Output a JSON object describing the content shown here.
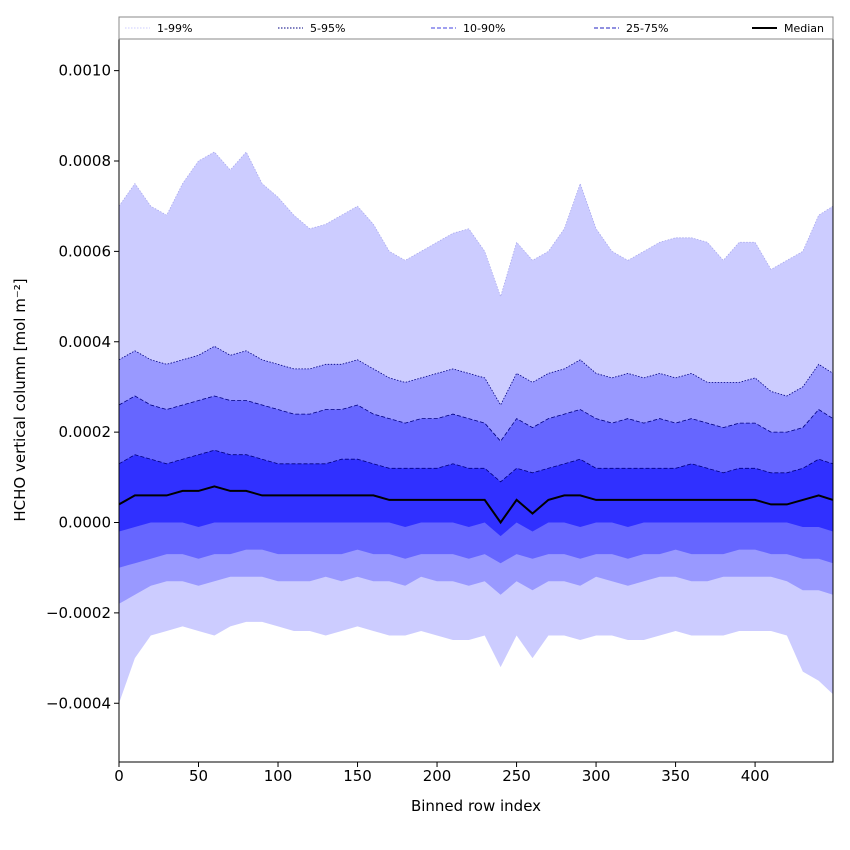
{
  "chart_data": {
    "type": "area",
    "xlabel": "Binned row index",
    "ylabel": "HCHO vertical column [mol m⁻²]",
    "xlim": [
      0,
      449
    ],
    "ylim": [
      -0.00053,
      0.00107
    ],
    "x_ticks": [
      {
        "value": 0,
        "label": "0"
      },
      {
        "value": 50,
        "label": "50"
      },
      {
        "value": 100,
        "label": "100"
      },
      {
        "value": 150,
        "label": "150"
      },
      {
        "value": 200,
        "label": "200"
      },
      {
        "value": 250,
        "label": "250"
      },
      {
        "value": 300,
        "label": "300"
      },
      {
        "value": 350,
        "label": "350"
      },
      {
        "value": 400,
        "label": "400"
      }
    ],
    "y_ticks": [
      {
        "value": 0.001,
        "label": "0.0010"
      },
      {
        "value": 0.0008,
        "label": "0.0008"
      },
      {
        "value": 0.0006,
        "label": "0.0006"
      },
      {
        "value": 0.0004,
        "label": "0.0004"
      },
      {
        "value": 0.0002,
        "label": "0.0002"
      },
      {
        "value": 0.0,
        "label": "0.0000"
      },
      {
        "value": -0.0002,
        "label": "−0.0002"
      },
      {
        "value": -0.0004,
        "label": "−0.0004"
      }
    ],
    "legend": {
      "placement": "top, above plot, horizontal",
      "entries": [
        {
          "label": "1-99%",
          "color": "#ccccff",
          "style": "dotted"
        },
        {
          "label": "5-95%",
          "color": "#000080",
          "style": "dotted"
        },
        {
          "label": "10-90%",
          "color": "#4040e0",
          "style": "dashed"
        },
        {
          "label": "25-75%",
          "color": "#2020c0",
          "style": "dashed"
        },
        {
          "label": "Median",
          "color": "#000000",
          "style": "solid"
        }
      ]
    },
    "band_colors": {
      "p1_99": "#ccccff",
      "p5_95": "#9999ff",
      "p10_90": "#6666ff",
      "p25_75": "#3030ff"
    },
    "median_color": "#000000",
    "x": [
      0,
      10,
      20,
      30,
      40,
      50,
      60,
      70,
      80,
      90,
      100,
      110,
      120,
      130,
      140,
      150,
      160,
      170,
      180,
      190,
      200,
      210,
      220,
      230,
      240,
      250,
      260,
      270,
      280,
      290,
      300,
      310,
      320,
      330,
      340,
      350,
      360,
      370,
      380,
      390,
      400,
      410,
      420,
      430,
      440,
      449
    ],
    "series": [
      {
        "name": "1-99%",
        "lower": [
          -0.0004,
          -0.0003,
          -0.00025,
          -0.00024,
          -0.00023,
          -0.00024,
          -0.00025,
          -0.00023,
          -0.00022,
          -0.00022,
          -0.00023,
          -0.00024,
          -0.00024,
          -0.00025,
          -0.00024,
          -0.00023,
          -0.00024,
          -0.00025,
          -0.00025,
          -0.00024,
          -0.00025,
          -0.00026,
          -0.00026,
          -0.00025,
          -0.00032,
          -0.00025,
          -0.0003,
          -0.00025,
          -0.00025,
          -0.00026,
          -0.00025,
          -0.00025,
          -0.00026,
          -0.00026,
          -0.00025,
          -0.00024,
          -0.00025,
          -0.00025,
          -0.00025,
          -0.00024,
          -0.00024,
          -0.00024,
          -0.00025,
          -0.00033,
          -0.00035,
          -0.00038
        ],
        "upper": [
          0.0007,
          0.00075,
          0.0007,
          0.00068,
          0.00075,
          0.0008,
          0.00082,
          0.00078,
          0.00082,
          0.00075,
          0.00072,
          0.00068,
          0.00065,
          0.00066,
          0.00068,
          0.0007,
          0.00066,
          0.0006,
          0.00058,
          0.0006,
          0.00062,
          0.00064,
          0.00065,
          0.0006,
          0.0005,
          0.00062,
          0.00058,
          0.0006,
          0.00065,
          0.00075,
          0.00065,
          0.0006,
          0.00058,
          0.0006,
          0.00062,
          0.00063,
          0.00063,
          0.00062,
          0.00058,
          0.00062,
          0.00062,
          0.00056,
          0.00058,
          0.0006,
          0.00068,
          0.0007
        ]
      },
      {
        "name": "5-95%",
        "lower": [
          -0.00018,
          -0.00016,
          -0.00014,
          -0.00013,
          -0.00013,
          -0.00014,
          -0.00013,
          -0.00012,
          -0.00012,
          -0.00012,
          -0.00013,
          -0.00013,
          -0.00013,
          -0.00012,
          -0.00013,
          -0.00012,
          -0.00013,
          -0.00013,
          -0.00014,
          -0.00012,
          -0.00013,
          -0.00013,
          -0.00014,
          -0.00013,
          -0.00016,
          -0.00013,
          -0.00015,
          -0.00013,
          -0.00013,
          -0.00014,
          -0.00012,
          -0.00013,
          -0.00014,
          -0.00013,
          -0.00012,
          -0.00012,
          -0.00013,
          -0.00013,
          -0.00012,
          -0.00012,
          -0.00012,
          -0.00012,
          -0.00013,
          -0.00015,
          -0.00015,
          -0.00016
        ],
        "upper": [
          0.00036,
          0.00038,
          0.00036,
          0.00035,
          0.00036,
          0.00037,
          0.00039,
          0.00037,
          0.00038,
          0.00036,
          0.00035,
          0.00034,
          0.00034,
          0.00035,
          0.00035,
          0.00036,
          0.00034,
          0.00032,
          0.00031,
          0.00032,
          0.00033,
          0.00034,
          0.00033,
          0.00032,
          0.00026,
          0.00033,
          0.00031,
          0.00033,
          0.00034,
          0.00036,
          0.00033,
          0.00032,
          0.00033,
          0.00032,
          0.00033,
          0.00032,
          0.00033,
          0.00031,
          0.00031,
          0.00031,
          0.00032,
          0.00029,
          0.00028,
          0.0003,
          0.00035,
          0.00033
        ]
      },
      {
        "name": "10-90%",
        "lower": [
          -0.0001,
          -9e-05,
          -8e-05,
          -7e-05,
          -7e-05,
          -8e-05,
          -7e-05,
          -7e-05,
          -6e-05,
          -6e-05,
          -7e-05,
          -7e-05,
          -7e-05,
          -7e-05,
          -7e-05,
          -6e-05,
          -7e-05,
          -7e-05,
          -8e-05,
          -7e-05,
          -7e-05,
          -7e-05,
          -8e-05,
          -7e-05,
          -9e-05,
          -7e-05,
          -8e-05,
          -7e-05,
          -7e-05,
          -8e-05,
          -7e-05,
          -7e-05,
          -8e-05,
          -7e-05,
          -7e-05,
          -6e-05,
          -7e-05,
          -7e-05,
          -7e-05,
          -6e-05,
          -6e-05,
          -7e-05,
          -7e-05,
          -8e-05,
          -8e-05,
          -9e-05
        ],
        "upper": [
          0.00026,
          0.00028,
          0.00026,
          0.00025,
          0.00026,
          0.00027,
          0.00028,
          0.00027,
          0.00027,
          0.00026,
          0.00025,
          0.00024,
          0.00024,
          0.00025,
          0.00025,
          0.00026,
          0.00024,
          0.00023,
          0.00022,
          0.00023,
          0.00023,
          0.00024,
          0.00023,
          0.00022,
          0.00018,
          0.00023,
          0.00021,
          0.00023,
          0.00024,
          0.00025,
          0.00023,
          0.00022,
          0.00023,
          0.00022,
          0.00023,
          0.00022,
          0.00023,
          0.00022,
          0.00021,
          0.00022,
          0.00022,
          0.0002,
          0.0002,
          0.00021,
          0.00025,
          0.00023
        ]
      },
      {
        "name": "25-75%",
        "lower": [
          -2e-05,
          -1e-05,
          0.0,
          0.0,
          0.0,
          -1e-05,
          0.0,
          0.0,
          0.0,
          0.0,
          0.0,
          0.0,
          0.0,
          0.0,
          0.0,
          0.0,
          0.0,
          0.0,
          -1e-05,
          0.0,
          0.0,
          0.0,
          -1e-05,
          0.0,
          -3e-05,
          0.0,
          -2e-05,
          0.0,
          0.0,
          -1e-05,
          0.0,
          0.0,
          -1e-05,
          0.0,
          0.0,
          0.0,
          0.0,
          0.0,
          0.0,
          0.0,
          0.0,
          0.0,
          0.0,
          -1e-05,
          -1e-05,
          -2e-05
        ],
        "upper": [
          0.00013,
          0.00015,
          0.00014,
          0.00013,
          0.00014,
          0.00015,
          0.00016,
          0.00015,
          0.00015,
          0.00014,
          0.00013,
          0.00013,
          0.00013,
          0.00013,
          0.00014,
          0.00014,
          0.00013,
          0.00012,
          0.00012,
          0.00012,
          0.00012,
          0.00013,
          0.00012,
          0.00012,
          9e-05,
          0.00012,
          0.00011,
          0.00012,
          0.00013,
          0.00014,
          0.00012,
          0.00012,
          0.00012,
          0.00012,
          0.00012,
          0.00012,
          0.00013,
          0.00012,
          0.00011,
          0.00012,
          0.00012,
          0.00011,
          0.00011,
          0.00012,
          0.00014,
          0.00013
        ]
      },
      {
        "name": "Median",
        "values": [
          4e-05,
          6e-05,
          6e-05,
          6e-05,
          7e-05,
          7e-05,
          8e-05,
          7e-05,
          7e-05,
          6e-05,
          6e-05,
          6e-05,
          6e-05,
          6e-05,
          6e-05,
          6e-05,
          6e-05,
          5e-05,
          5e-05,
          5e-05,
          5e-05,
          5e-05,
          5e-05,
          5e-05,
          0.0,
          5e-05,
          2e-05,
          5e-05,
          6e-05,
          6e-05,
          5e-05,
          5e-05,
          5e-05,
          5e-05,
          5e-05,
          5e-05,
          5e-05,
          5e-05,
          5e-05,
          5e-05,
          5e-05,
          4e-05,
          4e-05,
          5e-05,
          6e-05,
          5e-05
        ]
      }
    ]
  }
}
